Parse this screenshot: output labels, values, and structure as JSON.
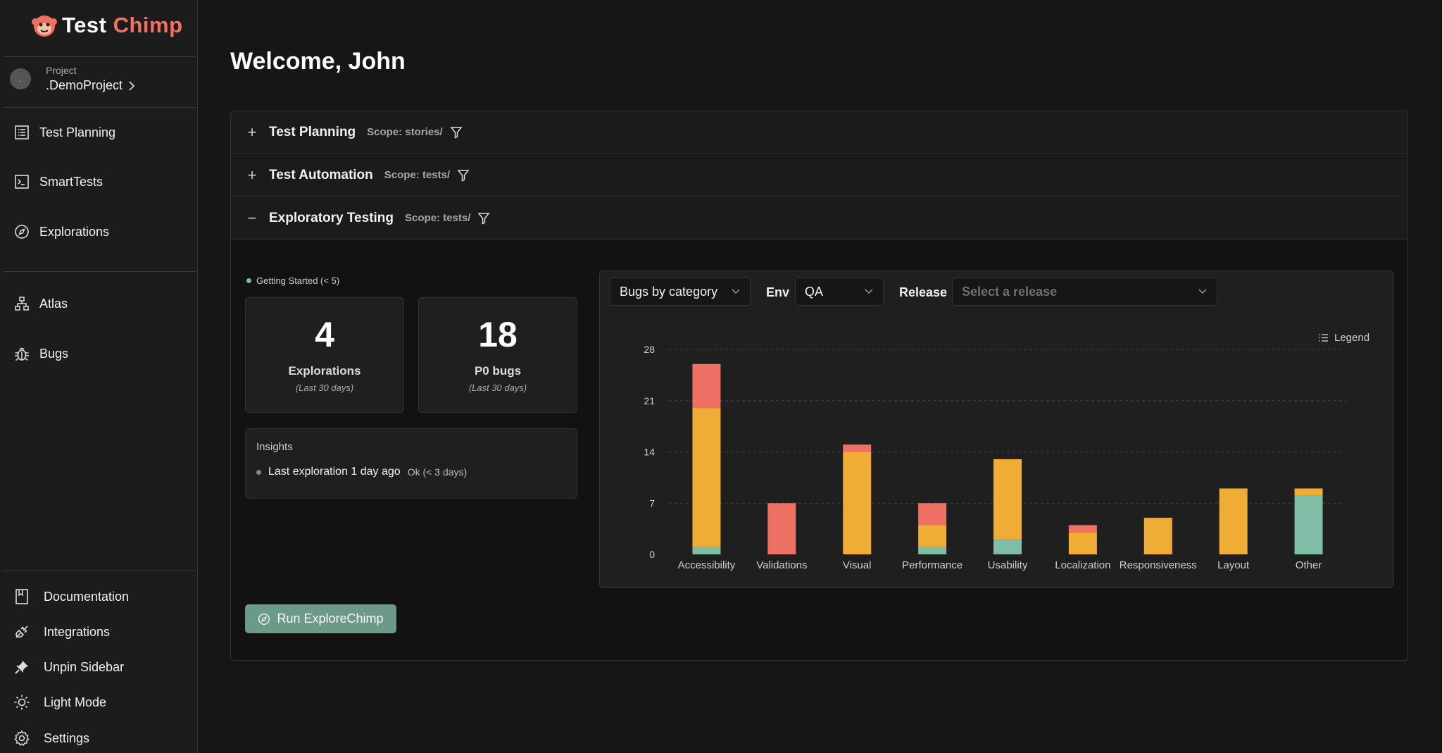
{
  "app": {
    "logo_word1": "Test",
    "logo_word2": "Chimp"
  },
  "project": {
    "label": "Project",
    "name": ".DemoProject",
    "avatar_initial": "."
  },
  "sidebar": {
    "top_items": [
      {
        "label": "Test Planning",
        "icon": "list-icon"
      },
      {
        "label": "SmartTests",
        "icon": "terminal-icon"
      },
      {
        "label": "Explorations",
        "icon": "compass-icon"
      }
    ],
    "mid_items": [
      {
        "label": "Atlas",
        "icon": "sitemap-icon"
      },
      {
        "label": "Bugs",
        "icon": "bug-icon"
      }
    ],
    "bottom_items": [
      {
        "label": "Documentation",
        "icon": "book-icon"
      },
      {
        "label": "Integrations",
        "icon": "plug-icon"
      },
      {
        "label": "Unpin Sidebar",
        "icon": "pin-icon"
      },
      {
        "label": "Light Mode",
        "icon": "sun-icon"
      },
      {
        "label": "Settings",
        "icon": "gear-icon"
      }
    ]
  },
  "main": {
    "welcome": "Welcome, John",
    "sections": [
      {
        "title": "Test Planning",
        "scope": "Scope: stories/",
        "toggle": "+"
      },
      {
        "title": "Test Automation",
        "scope": "Scope: tests/",
        "toggle": "+"
      },
      {
        "title": "Exploratory Testing",
        "scope": "Scope: tests/",
        "toggle": "−"
      }
    ],
    "getting_started": "Getting Started (< 5)",
    "stats": [
      {
        "value": "4",
        "label": "Explorations",
        "sub": "(Last 30 days)"
      },
      {
        "value": "18",
        "label": "P0 bugs",
        "sub": "(Last 30 days)"
      }
    ],
    "insights": {
      "title": "Insights",
      "items": [
        {
          "text": "Last exploration 1 day ago",
          "status": "Ok (< 3 days)"
        }
      ]
    },
    "run_button": "Run ExploreChimp",
    "filters": {
      "chart_type": "Bugs by category",
      "env_label": "Env",
      "env_value": "QA",
      "release_label": "Release",
      "release_placeholder": "Select a release"
    },
    "legend_label": "Legend"
  },
  "colors": {
    "accent": "#ef7261",
    "green": "#7fbda6",
    "orange": "#f0ad35",
    "red": "#ef7065",
    "button": "#6b9b88"
  },
  "chart_data": {
    "type": "bar",
    "stacked": true,
    "categories": [
      "Accessibility",
      "Validations",
      "Visual",
      "Performance",
      "Usability",
      "Localization",
      "Responsiveness",
      "Layout",
      "Other"
    ],
    "series": [
      {
        "color": "#7fbda6",
        "values": [
          1,
          0,
          0,
          1,
          2,
          0,
          0,
          0,
          8
        ]
      },
      {
        "color": "#f0ad35",
        "values": [
          19,
          0,
          14,
          3,
          11,
          3,
          5,
          9,
          1
        ]
      },
      {
        "color": "#ef7065",
        "values": [
          6,
          7,
          1,
          3,
          0,
          1,
          0,
          0,
          0
        ]
      }
    ],
    "yticks": [
      0,
      7,
      14,
      21,
      28
    ],
    "ylim": [
      0,
      28
    ],
    "grid": true,
    "legend_position": "top-right"
  }
}
